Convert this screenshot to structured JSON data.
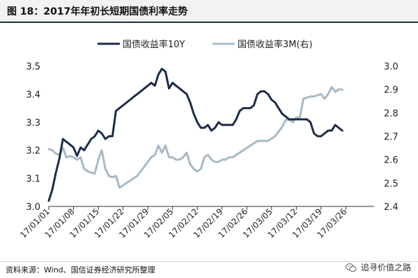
{
  "header": {
    "title": "图 18：2017年年初长短期国债利率走势"
  },
  "footer": {
    "source": "资料来源：Wind、国信证券经济研究所整理",
    "watermark": "追寻价值之路"
  },
  "colors": {
    "series_10y": "#1c2b49",
    "series_3m": "#a9b8c5",
    "axis": "#333333",
    "title_bg": "#f2f2f2"
  },
  "chart_data": {
    "type": "line",
    "title": "",
    "x_tick_labels": [
      "17/01/01",
      "17/01/08",
      "17/01/15",
      "17/01/22",
      "17/01/29",
      "17/02/05",
      "17/02/12",
      "17/02/19",
      "17/02/26",
      "17/03/05",
      "17/03/12",
      "17/03/19",
      "17/03/26"
    ],
    "x_range_days": [
      0,
      92
    ],
    "y_left": {
      "ylim": [
        3.0,
        3.5
      ],
      "ticks": [
        "3.0",
        "3.1",
        "3.2",
        "3.3",
        "3.4",
        "3.5"
      ]
    },
    "y_right": {
      "ylim": [
        2.4,
        3.0
      ],
      "ticks": [
        "2.4",
        "2.5",
        "2.6",
        "2.7",
        "2.8",
        "2.9",
        "3.0"
      ]
    },
    "series": [
      {
        "name": "国债收益率10Y",
        "axis": "left",
        "points": [
          [
            0,
            3.02
          ],
          [
            1,
            3.06
          ],
          [
            2,
            3.12
          ],
          [
            3,
            3.17
          ],
          [
            4,
            3.24
          ],
          [
            5,
            3.23
          ],
          [
            6,
            3.22
          ],
          [
            7,
            3.21
          ],
          [
            8,
            3.18
          ],
          [
            9,
            3.21
          ],
          [
            10,
            3.2
          ],
          [
            11,
            3.22
          ],
          [
            12,
            3.24
          ],
          [
            13,
            3.25
          ],
          [
            14,
            3.27
          ],
          [
            15,
            3.26
          ],
          [
            16,
            3.24
          ],
          [
            17,
            3.25
          ],
          [
            18,
            3.25
          ],
          [
            19,
            3.34
          ],
          [
            20,
            3.35
          ],
          [
            21,
            3.36
          ],
          [
            22,
            3.37
          ],
          [
            23,
            3.38
          ],
          [
            24,
            3.39
          ],
          [
            25,
            3.4
          ],
          [
            26,
            3.41
          ],
          [
            27,
            3.42
          ],
          [
            28,
            3.43
          ],
          [
            29,
            3.44
          ],
          [
            30,
            3.43
          ],
          [
            31,
            3.47
          ],
          [
            32,
            3.49
          ],
          [
            33,
            3.48
          ],
          [
            34,
            3.42
          ],
          [
            35,
            3.44
          ],
          [
            36,
            3.43
          ],
          [
            37,
            3.42
          ],
          [
            38,
            3.41
          ],
          [
            39,
            3.4
          ],
          [
            40,
            3.37
          ],
          [
            41,
            3.33
          ],
          [
            42,
            3.3
          ],
          [
            43,
            3.28
          ],
          [
            44,
            3.28
          ],
          [
            45,
            3.29
          ],
          [
            46,
            3.27
          ],
          [
            47,
            3.28
          ],
          [
            48,
            3.3
          ],
          [
            49,
            3.29
          ],
          [
            50,
            3.29
          ],
          [
            51,
            3.29
          ],
          [
            52,
            3.29
          ],
          [
            53,
            3.31
          ],
          [
            54,
            3.34
          ],
          [
            55,
            3.35
          ],
          [
            56,
            3.35
          ],
          [
            57,
            3.35
          ],
          [
            58,
            3.36
          ],
          [
            59,
            3.4
          ],
          [
            60,
            3.41
          ],
          [
            61,
            3.41
          ],
          [
            62,
            3.4
          ],
          [
            63,
            3.38
          ],
          [
            64,
            3.37
          ],
          [
            65,
            3.35
          ],
          [
            66,
            3.33
          ],
          [
            67,
            3.32
          ],
          [
            68,
            3.31
          ],
          [
            69,
            3.31
          ],
          [
            70,
            3.31
          ],
          [
            71,
            3.31
          ],
          [
            72,
            3.31
          ],
          [
            73,
            3.31
          ],
          [
            74,
            3.3
          ],
          [
            75,
            3.26
          ],
          [
            76,
            3.25
          ],
          [
            77,
            3.25
          ],
          [
            78,
            3.26
          ],
          [
            79,
            3.27
          ],
          [
            80,
            3.27
          ],
          [
            81,
            3.29
          ],
          [
            82,
            3.28
          ],
          [
            83,
            3.27
          ]
        ]
      },
      {
        "name": "国债收益率3M(右)",
        "axis": "right",
        "points": [
          [
            0,
            2.645
          ],
          [
            1,
            2.64
          ],
          [
            2,
            2.625
          ],
          [
            3,
            2.62
          ],
          [
            4,
            2.65
          ],
          [
            5,
            2.61
          ],
          [
            6,
            2.615
          ],
          [
            7,
            2.61
          ],
          [
            8,
            2.6
          ],
          [
            9,
            2.61
          ],
          [
            10,
            2.56
          ],
          [
            11,
            2.55
          ],
          [
            12,
            2.545
          ],
          [
            13,
            2.54
          ],
          [
            14,
            2.6
          ],
          [
            15,
            2.64
          ],
          [
            16,
            2.56
          ],
          [
            17,
            2.53
          ],
          [
            18,
            2.525
          ],
          [
            19,
            2.53
          ],
          [
            20,
            2.48
          ],
          [
            21,
            2.49
          ],
          [
            22,
            2.5
          ],
          [
            23,
            2.51
          ],
          [
            24,
            2.52
          ],
          [
            25,
            2.53
          ],
          [
            26,
            2.55
          ],
          [
            27,
            2.57
          ],
          [
            28,
            2.59
          ],
          [
            29,
            2.61
          ],
          [
            30,
            2.62
          ],
          [
            31,
            2.66
          ],
          [
            32,
            2.63
          ],
          [
            33,
            2.66
          ],
          [
            34,
            2.61
          ],
          [
            35,
            2.61
          ],
          [
            36,
            2.6
          ],
          [
            37,
            2.6
          ],
          [
            38,
            2.61
          ],
          [
            39,
            2.63
          ],
          [
            40,
            2.58
          ],
          [
            41,
            2.56
          ],
          [
            42,
            2.55
          ],
          [
            43,
            2.56
          ],
          [
            44,
            2.61
          ],
          [
            45,
            2.62
          ],
          [
            46,
            2.6
          ],
          [
            47,
            2.59
          ],
          [
            48,
            2.59
          ],
          [
            49,
            2.6
          ],
          [
            50,
            2.6
          ],
          [
            51,
            2.61
          ],
          [
            52,
            2.61
          ],
          [
            53,
            2.62
          ],
          [
            54,
            2.63
          ],
          [
            55,
            2.64
          ],
          [
            56,
            2.65
          ],
          [
            57,
            2.66
          ],
          [
            58,
            2.67
          ],
          [
            59,
            2.68
          ],
          [
            60,
            2.68
          ],
          [
            61,
            2.68
          ],
          [
            62,
            2.68
          ],
          [
            63,
            2.69
          ],
          [
            64,
            2.7
          ],
          [
            65,
            2.72
          ],
          [
            66,
            2.74
          ],
          [
            67,
            2.77
          ],
          [
            68,
            2.77
          ],
          [
            69,
            2.76
          ],
          [
            70,
            2.78
          ],
          [
            71,
            2.78
          ],
          [
            72,
            2.86
          ],
          [
            73,
            2.865
          ],
          [
            74,
            2.87
          ],
          [
            75,
            2.87
          ],
          [
            76,
            2.875
          ],
          [
            77,
            2.88
          ],
          [
            78,
            2.86
          ],
          [
            79,
            2.88
          ],
          [
            80,
            2.91
          ],
          [
            81,
            2.89
          ],
          [
            82,
            2.9
          ],
          [
            83,
            2.9
          ]
        ]
      }
    ],
    "legend_position": "top-center"
  }
}
